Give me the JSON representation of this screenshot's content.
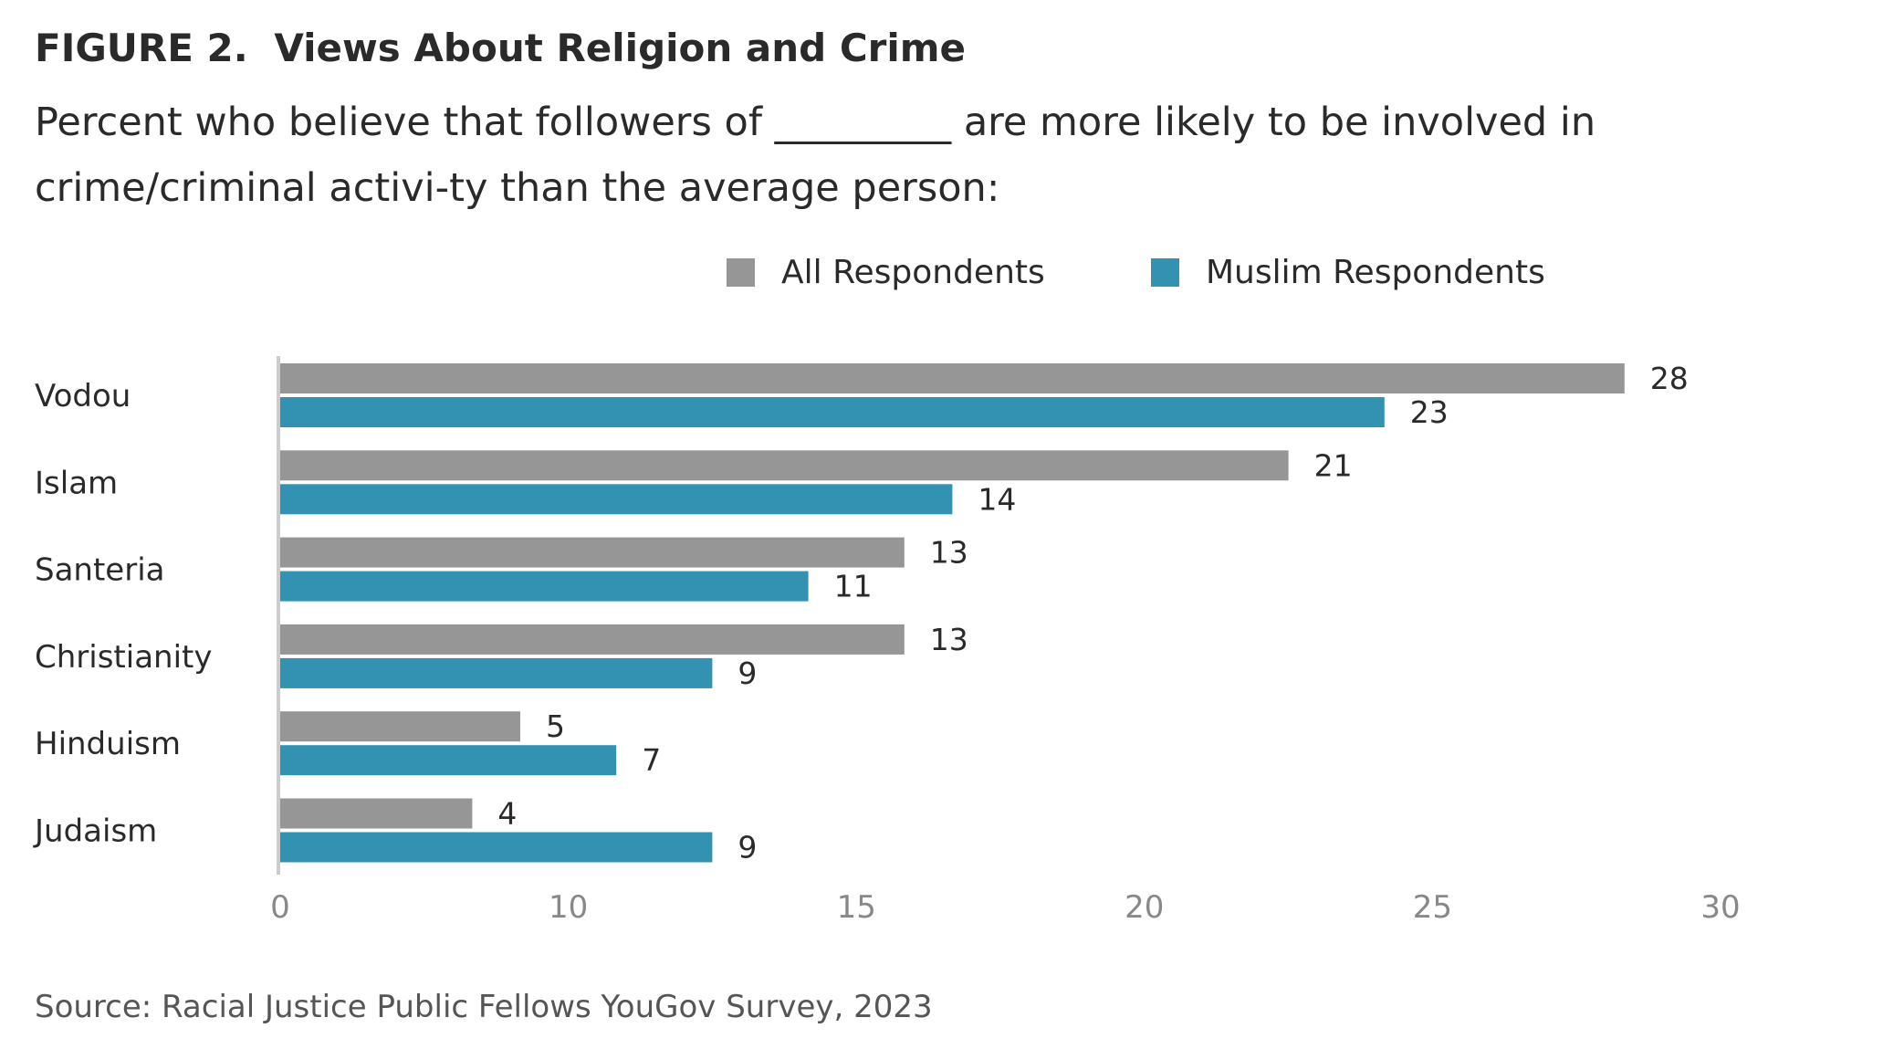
{
  "figure": {
    "number": "FIGURE 2.",
    "title": "Views About Religion and Crime",
    "subtitle": "Percent who believe that followers of _________ are more likely to be involved in crime/criminal activi-ty than the average person:",
    "source": "Source: Racial Justice Public Fellows YouGov Survey, 2023"
  },
  "colors": {
    "all_respondents": "#969696",
    "muslim_respondents": "#3391b1",
    "axis": "#cccccc"
  },
  "chart_data": {
    "type": "bar",
    "orientation": "horizontal",
    "categories": [
      "Vodou",
      "Islam",
      "Santeria",
      "Christianity",
      "Hinduism",
      "Judaism"
    ],
    "series": [
      {
        "name": "All Respondents",
        "values": [
          28,
          21,
          13,
          13,
          5,
          4
        ]
      },
      {
        "name": "Muslim Respondents",
        "values": [
          23,
          14,
          11,
          9,
          7,
          9
        ]
      }
    ],
    "x_ticks": [
      "0",
      "10",
      "15",
      "20",
      "25",
      "30"
    ],
    "xlim": [
      0,
      30
    ],
    "legend_position": "top",
    "grid": false
  }
}
